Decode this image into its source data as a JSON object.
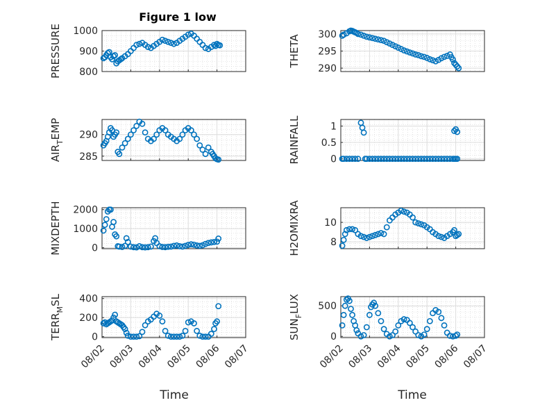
{
  "title": "Figure 1 low",
  "xlabel": "Time",
  "x_tick_labels": [
    "08/02",
    "08/03",
    "08/04",
    "08/05",
    "08/06",
    "08/07"
  ],
  "marker_color": "#0072BD",
  "chart_data": [
    {
      "type": "scatter",
      "ylabel_main": "PRESSURE",
      "ylabel_sub": "",
      "xlim": [
        0,
        5
      ],
      "ylim": [
        800,
        1000
      ],
      "yticks": [
        "800",
        "900",
        "1000"
      ],
      "x": [
        0.05,
        0.1,
        0.15,
        0.2,
        0.25,
        0.3,
        0.35,
        0.4,
        0.45,
        0.5,
        0.55,
        0.6,
        0.65,
        0.7,
        0.8,
        0.9,
        1.0,
        1.1,
        1.2,
        1.3,
        1.4,
        1.5,
        1.6,
        1.7,
        1.8,
        1.9,
        2.0,
        2.1,
        2.2,
        2.3,
        2.4,
        2.5,
        2.6,
        2.7,
        2.8,
        2.9,
        3.0,
        3.1,
        3.2,
        3.3,
        3.4,
        3.5,
        3.6,
        3.7,
        3.8,
        3.9,
        3.95,
        4.0,
        4.05,
        4.1
      ],
      "y": [
        865,
        870,
        880,
        890,
        895,
        870,
        860,
        875,
        880,
        840,
        850,
        855,
        860,
        865,
        875,
        885,
        900,
        915,
        930,
        935,
        940,
        930,
        920,
        915,
        925,
        935,
        945,
        955,
        950,
        945,
        940,
        935,
        940,
        950,
        960,
        970,
        980,
        985,
        975,
        960,
        945,
        930,
        915,
        910,
        920,
        930,
        925,
        935,
        930,
        928
      ]
    },
    {
      "type": "scatter",
      "ylabel_main": "THETA",
      "ylabel_sub": "",
      "xlim": [
        0,
        5
      ],
      "ylim": [
        289,
        301
      ],
      "yticks": [
        "290",
        "295",
        "300"
      ],
      "x": [
        0.05,
        0.1,
        0.2,
        0.3,
        0.35,
        0.4,
        0.45,
        0.5,
        0.55,
        0.6,
        0.7,
        0.8,
        0.9,
        1.0,
        1.1,
        1.2,
        1.3,
        1.4,
        1.5,
        1.6,
        1.7,
        1.8,
        1.9,
        2.0,
        2.1,
        2.2,
        2.3,
        2.4,
        2.5,
        2.6,
        2.7,
        2.8,
        2.9,
        3.0,
        3.1,
        3.2,
        3.3,
        3.4,
        3.5,
        3.6,
        3.7,
        3.8,
        3.85,
        3.9,
        3.95,
        4.0,
        4.05,
        4.1
      ],
      "y": [
        299.5,
        299.8,
        300.2,
        300.8,
        301.0,
        300.9,
        300.7,
        300.5,
        300.3,
        300.0,
        299.8,
        299.5,
        299.2,
        299.0,
        298.8,
        298.6,
        298.4,
        298.2,
        298.0,
        297.6,
        297.2,
        296.8,
        296.4,
        296.0,
        295.6,
        295.2,
        294.9,
        294.6,
        294.3,
        294.0,
        293.8,
        293.5,
        293.3,
        293.0,
        292.6,
        292.3,
        292.0,
        292.4,
        292.9,
        293.3,
        293.6,
        294.0,
        293.2,
        292.5,
        291.5,
        291.0,
        290.5,
        290.0
      ]
    },
    {
      "type": "scatter",
      "ylabel_main": "AIR",
      "ylabel_sub": "T",
      "ylabel_tail": "EMP",
      "xlim": [
        0,
        5
      ],
      "ylim": [
        284,
        293.5
      ],
      "yticks": [
        "285",
        "290"
      ],
      "x": [
        0.05,
        0.1,
        0.15,
        0.2,
        0.25,
        0.3,
        0.35,
        0.4,
        0.45,
        0.5,
        0.55,
        0.6,
        0.7,
        0.8,
        0.9,
        1.0,
        1.1,
        1.2,
        1.3,
        1.4,
        1.5,
        1.6,
        1.7,
        1.8,
        1.9,
        2.0,
        2.1,
        2.2,
        2.3,
        2.4,
        2.5,
        2.6,
        2.7,
        2.8,
        2.9,
        3.0,
        3.1,
        3.2,
        3.3,
        3.4,
        3.5,
        3.6,
        3.7,
        3.8,
        3.85,
        3.9,
        3.95,
        4.0,
        4.05
      ],
      "y": [
        287.5,
        288.0,
        288.5,
        289.5,
        290.5,
        291.5,
        291.0,
        289.5,
        290.0,
        290.5,
        286.0,
        285.5,
        287.0,
        288.0,
        289.0,
        290.0,
        291.0,
        292.0,
        293.0,
        292.5,
        290.5,
        289.0,
        288.5,
        289.0,
        290.0,
        291.0,
        291.5,
        291.0,
        290.0,
        289.5,
        289.0,
        288.5,
        289.0,
        290.0,
        291.0,
        291.5,
        291.0,
        290.0,
        289.0,
        287.5,
        286.5,
        285.5,
        287.0,
        286.0,
        285.5,
        285.0,
        284.5,
        284.3,
        284.2
      ]
    },
    {
      "type": "scatter",
      "ylabel_main": "RAINFALL",
      "ylabel_sub": "",
      "xlim": [
        0,
        5
      ],
      "ylim": [
        -0.05,
        1.2
      ],
      "yticks": [
        "0",
        "0.5",
        "1"
      ],
      "x": [
        0.05,
        0.1,
        0.2,
        0.3,
        0.4,
        0.5,
        0.6,
        0.7,
        0.75,
        0.8,
        0.85,
        0.9,
        1.0,
        1.1,
        1.2,
        1.3,
        1.4,
        1.5,
        1.6,
        1.7,
        1.8,
        1.9,
        2.0,
        2.1,
        2.2,
        2.3,
        2.4,
        2.5,
        2.6,
        2.7,
        2.8,
        2.9,
        3.0,
        3.1,
        3.2,
        3.3,
        3.4,
        3.5,
        3.6,
        3.7,
        3.8,
        3.9,
        3.95,
        4.0,
        4.05,
        3.95,
        4.0,
        4.05
      ],
      "y": [
        0,
        0,
        0,
        0,
        0,
        0,
        0,
        1.1,
        0.95,
        0.8,
        0,
        0,
        0,
        0,
        0,
        0,
        0,
        0,
        0,
        0,
        0,
        0,
        0,
        0,
        0,
        0,
        0,
        0,
        0,
        0,
        0,
        0,
        0,
        0,
        0,
        0,
        0,
        0,
        0,
        0,
        0,
        0,
        0,
        0,
        0,
        0.85,
        0.9,
        0.82
      ]
    },
    {
      "type": "scatter",
      "ylabel_main": "MIXDEPTH",
      "ylabel_sub": "",
      "xlim": [
        0,
        5
      ],
      "ylim": [
        -50,
        2100
      ],
      "yticks": [
        "0",
        "1000",
        "2000"
      ],
      "x": [
        0.05,
        0.1,
        0.15,
        0.2,
        0.25,
        0.3,
        0.35,
        0.4,
        0.45,
        0.5,
        0.55,
        0.6,
        0.7,
        0.8,
        0.85,
        0.9,
        1.0,
        1.1,
        1.2,
        1.3,
        1.4,
        1.5,
        1.6,
        1.7,
        1.8,
        1.85,
        1.9,
        2.0,
        2.1,
        2.2,
        2.3,
        2.4,
        2.5,
        2.6,
        2.7,
        2.8,
        2.9,
        3.0,
        3.1,
        3.2,
        3.3,
        3.4,
        3.5,
        3.6,
        3.7,
        3.8,
        3.9,
        4.0,
        4.05
      ],
      "y": [
        900,
        1200,
        1500,
        1900,
        2000,
        2000,
        1100,
        1350,
        700,
        600,
        80,
        60,
        40,
        100,
        500,
        300,
        60,
        30,
        20,
        80,
        30,
        20,
        30,
        60,
        350,
        500,
        250,
        80,
        40,
        30,
        50,
        60,
        100,
        120,
        80,
        60,
        100,
        150,
        180,
        160,
        120,
        100,
        130,
        200,
        250,
        280,
        300,
        320,
        480
      ]
    },
    {
      "type": "scatter",
      "ylabel_main": "H2OMIXRA",
      "ylabel_sub": "",
      "xlim": [
        0,
        5
      ],
      "ylim": [
        7.3,
        11.5
      ],
      "yticks": [
        "8",
        "10"
      ],
      "x": [
        0.05,
        0.1,
        0.15,
        0.2,
        0.3,
        0.4,
        0.5,
        0.6,
        0.7,
        0.8,
        0.9,
        1.0,
        1.1,
        1.2,
        1.3,
        1.4,
        1.5,
        1.6,
        1.7,
        1.8,
        1.9,
        2.0,
        2.1,
        2.2,
        2.3,
        2.4,
        2.5,
        2.6,
        2.7,
        2.8,
        2.9,
        3.0,
        3.1,
        3.2,
        3.3,
        3.4,
        3.5,
        3.6,
        3.7,
        3.8,
        3.9,
        3.95,
        4.0,
        4.05,
        4.1
      ],
      "y": [
        7.6,
        8.2,
        8.8,
        9.2,
        9.3,
        9.3,
        9.2,
        8.8,
        8.6,
        8.5,
        8.4,
        8.5,
        8.6,
        8.7,
        8.8,
        8.9,
        8.8,
        9.5,
        10.2,
        10.5,
        10.8,
        11.0,
        11.2,
        11.1,
        11.0,
        10.8,
        10.5,
        10.0,
        9.9,
        9.8,
        9.7,
        9.5,
        9.3,
        9.0,
        8.8,
        8.6,
        8.5,
        8.4,
        8.6,
        8.8,
        9.0,
        9.2,
        8.6,
        8.7,
        8.8
      ]
    },
    {
      "type": "scatter",
      "ylabel_main": "TERR",
      "ylabel_sub": "M",
      "ylabel_tail": "SL",
      "xlim": [
        0,
        5
      ],
      "ylim": [
        -10,
        420
      ],
      "yticks": [
        "0",
        "200",
        "400"
      ],
      "x": [
        0.05,
        0.1,
        0.15,
        0.2,
        0.25,
        0.3,
        0.35,
        0.4,
        0.45,
        0.5,
        0.55,
        0.6,
        0.65,
        0.7,
        0.75,
        0.8,
        0.85,
        0.9,
        1.0,
        1.1,
        1.2,
        1.3,
        1.4,
        1.5,
        1.6,
        1.7,
        1.8,
        1.9,
        2.0,
        2.1,
        2.2,
        2.3,
        2.4,
        2.5,
        2.6,
        2.7,
        2.8,
        2.9,
        3.0,
        3.1,
        3.2,
        3.3,
        3.4,
        3.5,
        3.6,
        3.7,
        3.8,
        3.9,
        3.95,
        4.0,
        4.05
      ],
      "y": [
        140,
        150,
        130,
        140,
        150,
        160,
        170,
        200,
        230,
        160,
        150,
        140,
        130,
        120,
        100,
        80,
        40,
        10,
        0,
        0,
        0,
        5,
        50,
        120,
        160,
        180,
        210,
        240,
        220,
        160,
        60,
        10,
        0,
        0,
        0,
        0,
        10,
        60,
        150,
        160,
        140,
        60,
        10,
        0,
        0,
        0,
        30,
        80,
        140,
        160,
        320
      ]
    },
    {
      "type": "scatter",
      "ylabel_main": "SUN",
      "ylabel_sub": "F",
      "ylabel_tail": "LUX",
      "xlim": [
        0,
        5
      ],
      "ylim": [
        -20,
        650
      ],
      "yticks": [
        "0",
        "500"
      ],
      "x": [
        0.05,
        0.1,
        0.15,
        0.2,
        0.25,
        0.3,
        0.35,
        0.4,
        0.45,
        0.5,
        0.55,
        0.6,
        0.7,
        0.8,
        0.9,
        1.0,
        1.05,
        1.1,
        1.15,
        1.2,
        1.3,
        1.4,
        1.5,
        1.6,
        1.7,
        1.8,
        1.9,
        2.0,
        2.1,
        2.2,
        2.3,
        2.4,
        2.5,
        2.6,
        2.7,
        2.8,
        2.9,
        3.0,
        3.1,
        3.2,
        3.3,
        3.4,
        3.5,
        3.6,
        3.7,
        3.8,
        3.9,
        4.0,
        4.05
      ],
      "y": [
        180,
        350,
        500,
        600,
        620,
        580,
        450,
        350,
        250,
        180,
        100,
        50,
        0,
        20,
        150,
        350,
        480,
        520,
        550,
        500,
        380,
        250,
        120,
        40,
        0,
        20,
        80,
        180,
        250,
        280,
        270,
        220,
        150,
        80,
        20,
        0,
        30,
        120,
        250,
        380,
        430,
        400,
        300,
        180,
        60,
        10,
        0,
        10,
        30
      ]
    }
  ]
}
